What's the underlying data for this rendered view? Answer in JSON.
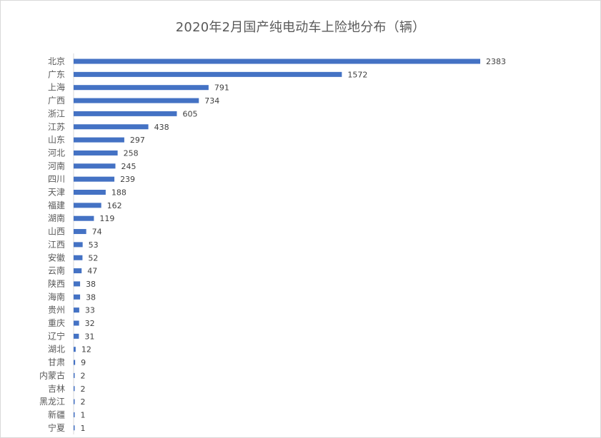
{
  "chart_data": {
    "type": "bar",
    "orientation": "horizontal",
    "title": "2020年2月国产纯电动车上险地分布（辆）",
    "xlabel": "",
    "ylabel": "",
    "xlim": [
      0,
      2383
    ],
    "grid": false,
    "legend": "none",
    "bar_color": "#4472c4",
    "categories": [
      "北京",
      "广东",
      "上海",
      "广西",
      "浙江",
      "江苏",
      "山东",
      "河北",
      "河南",
      "四川",
      "天津",
      "福建",
      "湖南",
      "山西",
      "江西",
      "安徽",
      "云南",
      "陕西",
      "海南",
      "贵州",
      "重庆",
      "辽宁",
      "湖北",
      "甘肃",
      "内蒙古",
      "吉林",
      "黑龙江",
      "新疆",
      "宁夏"
    ],
    "values": [
      2383,
      1572,
      791,
      734,
      605,
      438,
      297,
      258,
      245,
      239,
      188,
      162,
      119,
      74,
      53,
      52,
      47,
      38,
      38,
      33,
      32,
      31,
      12,
      9,
      2,
      2,
      2,
      1,
      1
    ],
    "data_labels": true
  }
}
